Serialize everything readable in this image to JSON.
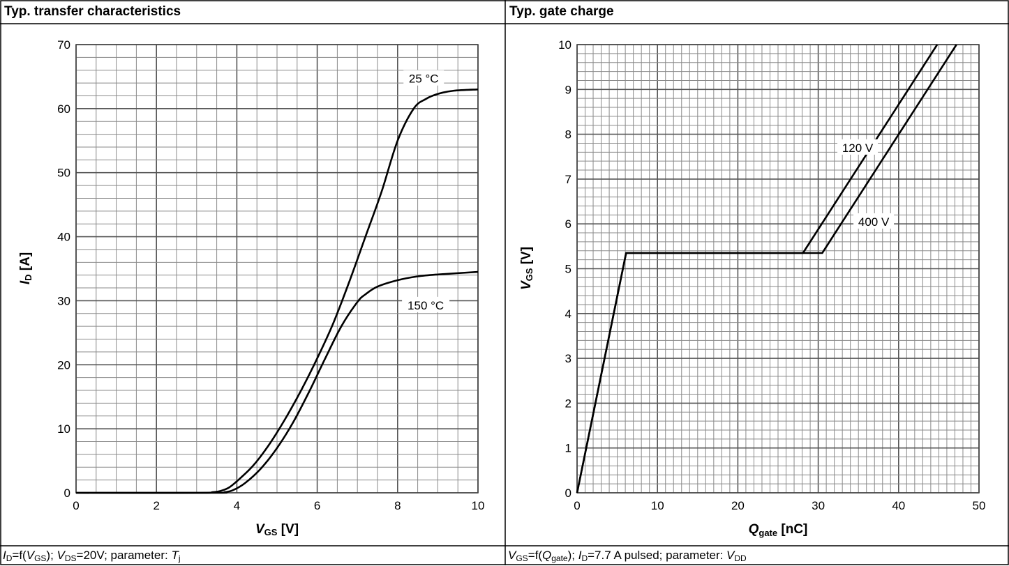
{
  "charts": [
    {
      "title": "Typ. transfer characteristics",
      "ylabel_sym": "I",
      "ylabel_sub": "D",
      "ylabel_unit": " [A]",
      "xlabel_sym": "V",
      "xlabel_sub": "GS",
      "xlabel_unit": " [V]",
      "caption": {
        "p1": "I",
        "p2": "D",
        "p3": "=f(",
        "p4": "V",
        "p5": "GS",
        "p6": "); ",
        "p7": "V",
        "p8": "DS",
        "p9": "=20V; parameter: ",
        "p10": "T",
        "p11": "j"
      }
    },
    {
      "title": "Typ. gate charge",
      "ylabel_sym": "V",
      "ylabel_sub": "GS",
      "ylabel_unit": " [V]",
      "xlabel_sym": "Q",
      "xlabel_sub": "gate",
      "xlabel_unit": " [nC]",
      "caption": {
        "p1": "V",
        "p2": "GS",
        "p3": "=f(",
        "p4": "Q",
        "p5": "gate",
        "p6": "); ",
        "p7": "I",
        "p8": "D",
        "p9": "=7.7 A pulsed; parameter: ",
        "p10": "V",
        "p11": "DD"
      }
    }
  ],
  "chart_data": [
    {
      "type": "line",
      "title": "Typ. transfer characteristics",
      "xlabel": "VGS [V]",
      "ylabel": "ID [A]",
      "xlim": [
        0,
        10
      ],
      "ylim": [
        0,
        70
      ],
      "xticks": [
        0,
        2,
        4,
        6,
        8,
        10
      ],
      "yticks": [
        0,
        10,
        20,
        30,
        40,
        50,
        60,
        70
      ],
      "grid": true,
      "series": [
        {
          "name": "25 °C",
          "x": [
            0,
            3.0,
            3.4,
            3.6,
            3.8,
            4.0,
            4.4,
            4.8,
            5.2,
            5.6,
            6.0,
            6.4,
            6.8,
            7.2,
            7.6,
            8.0,
            8.4,
            8.7,
            9.0,
            9.4,
            10.0
          ],
          "y": [
            0,
            0,
            0.1,
            0.3,
            0.8,
            1.8,
            4.2,
            7.5,
            11.5,
            16.0,
            21.0,
            26.5,
            33.0,
            40.0,
            47.0,
            55.0,
            60.0,
            61.5,
            62.3,
            62.8,
            63.0
          ]
        },
        {
          "name": "150 °C",
          "x": [
            0,
            3.4,
            3.7,
            3.9,
            4.2,
            4.6,
            5.0,
            5.4,
            5.8,
            6.2,
            6.6,
            7.0,
            7.2,
            7.5,
            8.0,
            8.5,
            9.0,
            10.0
          ],
          "y": [
            0,
            0,
            0.1,
            0.4,
            1.5,
            3.8,
            7.0,
            11.0,
            15.8,
            21.0,
            26.0,
            29.8,
            31.0,
            32.2,
            33.2,
            33.8,
            34.1,
            34.5
          ]
        }
      ],
      "annotations": [
        "25 °C",
        "150 °C"
      ]
    },
    {
      "type": "line",
      "title": "Typ. gate charge",
      "xlabel": "Qgate [nC]",
      "ylabel": "VGS [V]",
      "xlim": [
        0,
        50
      ],
      "ylim": [
        0,
        10
      ],
      "xticks": [
        0,
        10,
        20,
        30,
        40,
        50
      ],
      "yticks": [
        0,
        1,
        2,
        3,
        4,
        5,
        6,
        7,
        8,
        9,
        10
      ],
      "grid": true,
      "series": [
        {
          "name": "120 V",
          "x": [
            0,
            6.1,
            28.1,
            44.8
          ],
          "y": [
            0,
            5.35,
            5.35,
            10.0
          ]
        },
        {
          "name": "400 V",
          "x": [
            0,
            6.1,
            30.5,
            47.2
          ],
          "y": [
            0,
            5.35,
            5.35,
            10.0
          ]
        }
      ],
      "annotations": [
        "120 V",
        "400 V"
      ]
    }
  ]
}
